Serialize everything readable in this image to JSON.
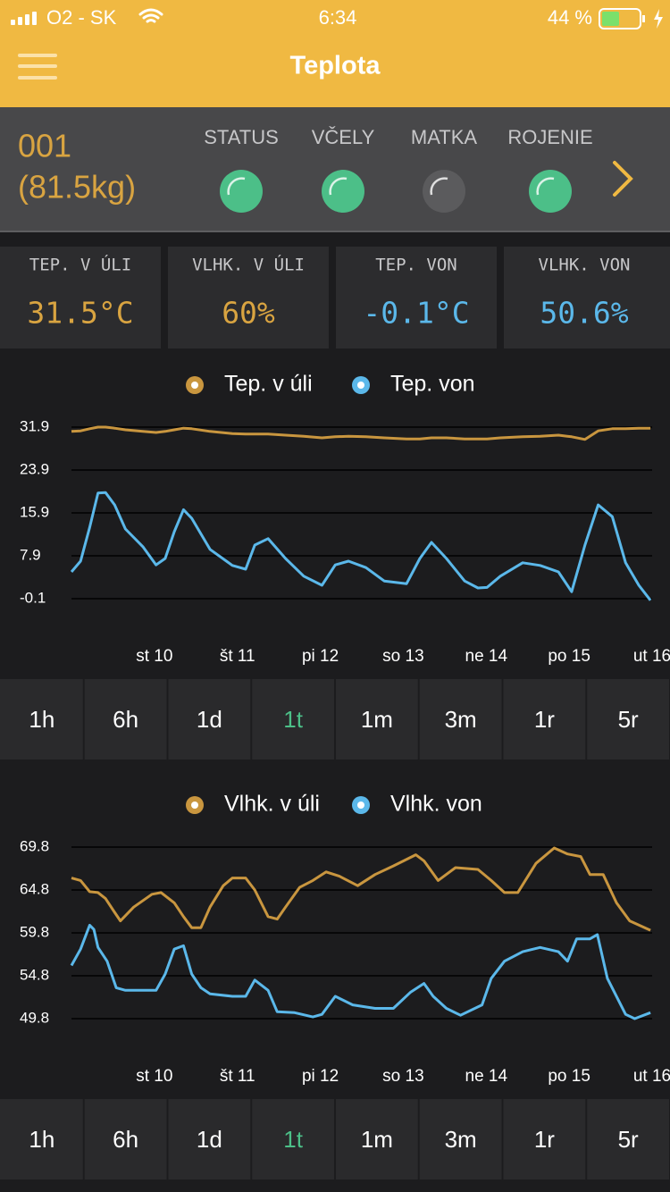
{
  "status_bar": {
    "carrier": "O2 - SK",
    "time": "6:34",
    "battery": "44 %"
  },
  "header": {
    "title": "Teplota"
  },
  "hive": {
    "id": "001",
    "weight": "(81.5kg)",
    "indicators": [
      {
        "label": "STATUS",
        "color": "#4cbf88"
      },
      {
        "label": "VČELY",
        "color": "#4cbf88"
      },
      {
        "label": "MATKA",
        "color": "#5b5b5d"
      },
      {
        "label": "ROJENIE",
        "color": "#4cbf88"
      }
    ]
  },
  "readings": [
    {
      "label": "TEP. V ÚLI",
      "value": "31.5°C",
      "color": "#d9a441"
    },
    {
      "label": "VLHK. V ÚLI",
      "value": "60%",
      "color": "#d9a441"
    },
    {
      "label": "TEP. VON",
      "value": "-0.1°C",
      "color": "#5bb8ea"
    },
    {
      "label": "VLHK. VON",
      "value": "50.6%",
      "color": "#5bb8ea"
    }
  ],
  "ranges": [
    "1h",
    "6h",
    "1d",
    "1t",
    "1m",
    "3m",
    "1r",
    "5r"
  ],
  "active_range": "1t",
  "chart_data": [
    {
      "type": "line",
      "grid": true,
      "legend": "top",
      "xlim": [
        0,
        7
      ],
      "xticks": [
        {
          "value": 1,
          "label": "st 10"
        },
        {
          "value": 2,
          "label": "št 11"
        },
        {
          "value": 3,
          "label": "pi 12"
        },
        {
          "value": 4,
          "label": "so 13"
        },
        {
          "value": 5,
          "label": "ne 14"
        },
        {
          "value": 6,
          "label": "po 15"
        },
        {
          "value": 7,
          "label": "ut 16"
        }
      ],
      "ylim": [
        -0.1,
        31.9
      ],
      "yticks": [
        31.9,
        23.9,
        15.9,
        7.9,
        -0.1
      ],
      "series": [
        {
          "name": "Tep. v úli",
          "color": "#c9963f",
          "x": [
            0,
            0.11,
            0.22,
            0.32,
            0.41,
            0.52,
            0.65,
            0.86,
            1.02,
            1.13,
            1.24,
            1.35,
            1.45,
            1.67,
            1.94,
            2.1,
            2.21,
            2.37,
            2.58,
            2.8,
            3.02,
            3.18,
            3.34,
            3.55,
            3.77,
            4.04,
            4.2,
            4.34,
            4.52,
            4.74,
            4.9,
            5.01,
            5.17,
            5.44,
            5.65,
            5.87,
            6.03,
            6.19,
            6.35,
            6.52,
            6.68,
            6.84,
            6.98
          ],
          "values": [
            31.1,
            31.2,
            31.6,
            31.9,
            31.9,
            31.7,
            31.4,
            31.1,
            30.9,
            31.1,
            31.4,
            31.7,
            31.6,
            31.1,
            30.7,
            30.6,
            30.6,
            30.6,
            30.4,
            30.2,
            29.9,
            30.1,
            30.2,
            30.1,
            29.9,
            29.7,
            29.7,
            29.9,
            29.9,
            29.7,
            29.7,
            29.7,
            29.9,
            30.1,
            30.2,
            30.4,
            30.1,
            29.6,
            31.2,
            31.6,
            31.6,
            31.7,
            31.7
          ]
        },
        {
          "name": "Tep. von",
          "color": "#5bb8ea",
          "x": [
            0,
            0.11,
            0.22,
            0.32,
            0.41,
            0.52,
            0.65,
            0.86,
            1.02,
            1.13,
            1.24,
            1.35,
            1.45,
            1.67,
            1.94,
            2.1,
            2.21,
            2.37,
            2.58,
            2.8,
            3.02,
            3.18,
            3.34,
            3.55,
            3.77,
            4.04,
            4.2,
            4.34,
            4.52,
            4.74,
            4.9,
            5.01,
            5.17,
            5.44,
            5.65,
            5.87,
            6.03,
            6.19,
            6.35,
            6.52,
            6.68,
            6.84,
            6.98
          ],
          "values": [
            4.9,
            6.9,
            13.2,
            19.6,
            19.7,
            17.4,
            12.9,
            9.6,
            6.2,
            7.4,
            12.4,
            16.5,
            14.9,
            9.1,
            6.1,
            5.4,
            9.9,
            11.1,
            7.4,
            4.1,
            2.4,
            6.2,
            6.9,
            5.7,
            3.2,
            2.7,
            7.4,
            10.4,
            7.4,
            3.2,
            1.9,
            2.0,
            4.1,
            6.6,
            6.1,
            4.9,
            1.2,
            9.9,
            17.4,
            15.2,
            6.6,
            2.4,
            -0.4
          ]
        }
      ]
    },
    {
      "type": "line",
      "grid": true,
      "legend": "top",
      "xlim": [
        0,
        7
      ],
      "xticks": [
        {
          "value": 1,
          "label": "st 10"
        },
        {
          "value": 2,
          "label": "št 11"
        },
        {
          "value": 3,
          "label": "pi 12"
        },
        {
          "value": 4,
          "label": "so 13"
        },
        {
          "value": 5,
          "label": "ne 14"
        },
        {
          "value": 6,
          "label": "po 15"
        },
        {
          "value": 7,
          "label": "ut 16"
        }
      ],
      "ylim": [
        49.8,
        69.8
      ],
      "yticks": [
        69.8,
        64.8,
        59.8,
        54.8,
        49.8
      ],
      "series": [
        {
          "name": "Vlhk. v úli",
          "color": "#c9963f",
          "x": [
            0,
            0.11,
            0.22,
            0.32,
            0.41,
            0.52,
            0.59,
            0.75,
            0.97,
            1.08,
            1.24,
            1.35,
            1.45,
            1.56,
            1.67,
            1.83,
            1.94,
            2.1,
            2.21,
            2.37,
            2.48,
            2.58,
            2.75,
            2.91,
            3.07,
            3.23,
            3.45,
            3.66,
            3.88,
            4.15,
            4.25,
            4.42,
            4.63,
            4.9,
            5.06,
            5.22,
            5.38,
            5.6,
            5.82,
            5.98,
            6.14,
            6.25,
            6.41,
            6.57,
            6.73,
            6.98
          ],
          "values": [
            66.2,
            65.9,
            64.6,
            64.5,
            63.8,
            62.2,
            61.2,
            62.8,
            64.3,
            64.5,
            63.3,
            61.7,
            60.4,
            60.4,
            62.8,
            65.3,
            66.2,
            66.2,
            64.8,
            61.7,
            61.4,
            62.8,
            65.1,
            65.9,
            66.9,
            66.4,
            65.3,
            66.6,
            67.6,
            68.9,
            68.2,
            65.9,
            67.4,
            67.2,
            65.9,
            64.5,
            64.5,
            67.9,
            69.7,
            69.0,
            68.7,
            66.6,
            66.6,
            63.3,
            61.2,
            60.1
          ]
        },
        {
          "name": "Vlhk. von",
          "color": "#5bb8ea",
          "x": [
            0,
            0.11,
            0.22,
            0.27,
            0.32,
            0.43,
            0.54,
            0.65,
            0.86,
            1.02,
            1.13,
            1.24,
            1.35,
            1.45,
            1.56,
            1.67,
            1.94,
            2.1,
            2.21,
            2.37,
            2.48,
            2.69,
            2.91,
            3.02,
            3.18,
            3.39,
            3.66,
            3.88,
            4.09,
            4.25,
            4.36,
            4.52,
            4.69,
            4.95,
            5.06,
            5.22,
            5.44,
            5.65,
            5.87,
            5.98,
            6.09,
            6.25,
            6.34,
            6.46,
            6.68,
            6.79,
            6.98
          ],
          "values": [
            56.0,
            57.9,
            60.7,
            60.2,
            58.1,
            56.5,
            53.4,
            53.1,
            53.1,
            53.1,
            55.0,
            57.9,
            58.3,
            55.0,
            53.4,
            52.7,
            52.4,
            52.4,
            54.3,
            53.1,
            50.6,
            50.5,
            50.0,
            50.3,
            52.4,
            51.4,
            51.0,
            51.0,
            52.9,
            53.9,
            52.4,
            51.0,
            50.2,
            51.4,
            54.5,
            56.5,
            57.6,
            58.1,
            57.6,
            56.5,
            59.1,
            59.1,
            59.6,
            54.5,
            50.3,
            49.8,
            50.5
          ]
        }
      ]
    }
  ]
}
